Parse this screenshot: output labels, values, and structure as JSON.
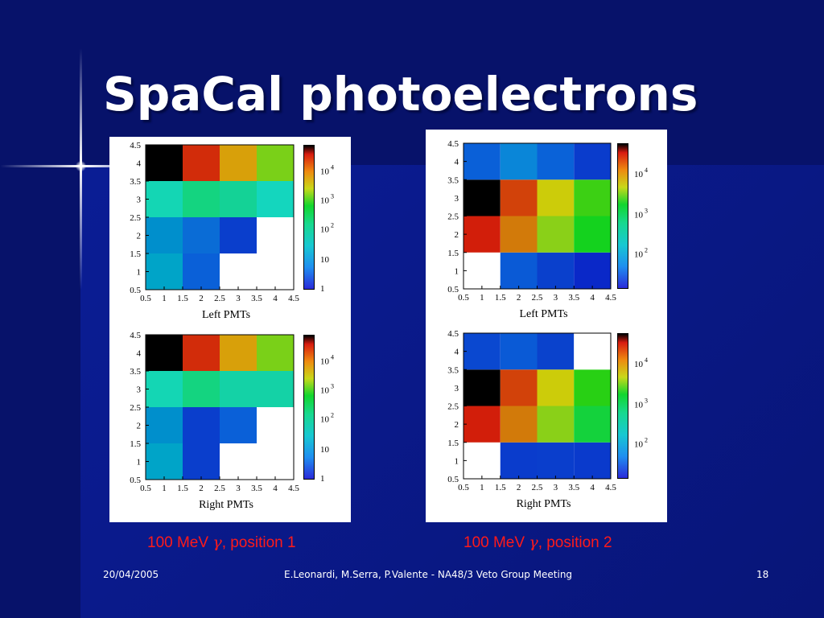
{
  "slide": {
    "title": "SpaCal photoelectrons",
    "captions": [
      {
        "text": "100 MeV ",
        "symbol": "γ",
        "suffix": ", position 1"
      },
      {
        "text": "100 MeV ",
        "symbol": "γ",
        "suffix": ", position 2"
      }
    ]
  },
  "footer": {
    "date": "20/04/2005",
    "center": "E.Leonardi, M.Serra, P.Valente - NA48/3 Veto Group Meeting",
    "page": "18"
  },
  "chart_data": [
    {
      "type": "heatmap",
      "xlabel": "Left PMTs",
      "ylabel": "",
      "x_range": [
        0.5,
        4.5
      ],
      "y_range": [
        0.5,
        4.5
      ],
      "x_ticks": [
        "0.5",
        "1",
        "1.5",
        "2",
        "2.5",
        "3",
        "3.5",
        "4",
        "4.5"
      ],
      "y_ticks": [
        "0.5",
        "1",
        "1.5",
        "2",
        "2.5",
        "3",
        "3.5",
        "4",
        "4.5"
      ],
      "colorbar_labels": [
        "10 4",
        "10 3",
        "10 2",
        "10",
        "1"
      ],
      "colorbar_scale": "log",
      "x_bins": [
        1,
        2,
        3,
        4
      ],
      "y_bins": [
        1,
        2,
        3,
        4
      ],
      "cell_colors": [
        [
          "#00a4c8",
          "#0a60d8",
          "#ffffff",
          "#ffffff"
        ],
        [
          "#008fcc",
          "#0a6cd6",
          "#0a3ecc",
          "#ffffff"
        ],
        [
          "#14d6b4",
          "#14d480",
          "#14d296",
          "#14d6be"
        ],
        [
          "#000000",
          "#d22c0a",
          "#d8a00a",
          "#7ad018"
        ]
      ]
    },
    {
      "type": "heatmap",
      "xlabel": "Right PMTs",
      "ylabel": "",
      "x_range": [
        0.5,
        4.5
      ],
      "y_range": [
        0.5,
        4.5
      ],
      "x_ticks": [
        "0.5",
        "1",
        "1.5",
        "2",
        "2.5",
        "3",
        "3.5",
        "4",
        "4.5"
      ],
      "y_ticks": [
        "0.5",
        "1",
        "1.5",
        "2",
        "2.5",
        "3",
        "3.5",
        "4",
        "4.5"
      ],
      "colorbar_labels": [
        "10 4",
        "10 3",
        "10 2",
        "10",
        "1"
      ],
      "colorbar_scale": "log",
      "x_bins": [
        1,
        2,
        3,
        4
      ],
      "y_bins": [
        1,
        2,
        3,
        4
      ],
      "cell_colors": [
        [
          "#00a4c8",
          "#0a3ecc",
          "#ffffff",
          "#ffffff"
        ],
        [
          "#008fcc",
          "#0a3ecc",
          "#0a60d8",
          "#ffffff"
        ],
        [
          "#14d6b4",
          "#14d480",
          "#14d2a6",
          "#14d2a6"
        ],
        [
          "#000000",
          "#d22c0a",
          "#d8a00a",
          "#7ad018"
        ]
      ]
    },
    {
      "type": "heatmap",
      "xlabel": "Left PMTs",
      "ylabel": "",
      "x_range": [
        0.5,
        4.5
      ],
      "y_range": [
        0.5,
        4.5
      ],
      "x_ticks": [
        "0.5",
        "1",
        "1.5",
        "2",
        "2.5",
        "3",
        "3.5",
        "4",
        "4.5"
      ],
      "y_ticks": [
        "0.5",
        "1",
        "1.5",
        "2",
        "2.5",
        "3",
        "3.5",
        "4",
        "4.5"
      ],
      "colorbar_labels": [
        "10 4",
        "10 3",
        "10 2"
      ],
      "colorbar_scale": "log",
      "x_bins": [
        1,
        2,
        3,
        4
      ],
      "y_bins": [
        1,
        2,
        3,
        4
      ],
      "cell_colors": [
        [
          "#ffffff",
          "#0a5ad6",
          "#0a40cc",
          "#0a28c8"
        ],
        [
          "#d21e0a",
          "#d27a0a",
          "#8ad018",
          "#14d21e"
        ],
        [
          "#000000",
          "#d2420a",
          "#cccc0a",
          "#3cd014"
        ],
        [
          "#0a60d8",
          "#0a86d8",
          "#0a62d8",
          "#0a3ccc"
        ]
      ]
    },
    {
      "type": "heatmap",
      "xlabel": "Right PMTs",
      "ylabel": "",
      "x_range": [
        0.5,
        4.5
      ],
      "y_range": [
        0.5,
        4.5
      ],
      "x_ticks": [
        "0.5",
        "1",
        "1.5",
        "2",
        "2.5",
        "3",
        "3.5",
        "4",
        "4.5"
      ],
      "y_ticks": [
        "0.5",
        "1",
        "1.5",
        "2",
        "2.5",
        "3",
        "3.5",
        "4",
        "4.5"
      ],
      "colorbar_labels": [
        "10 4",
        "10 3",
        "10 2"
      ],
      "colorbar_scale": "log",
      "x_bins": [
        1,
        2,
        3,
        4
      ],
      "y_bins": [
        1,
        2,
        3,
        4
      ],
      "cell_colors": [
        [
          "#ffffff",
          "#0a3ccc",
          "#0a3ecc",
          "#0a3acc"
        ],
        [
          "#d21e0a",
          "#d27a0a",
          "#8ad018",
          "#14d23c"
        ],
        [
          "#000000",
          "#d2420a",
          "#cccc0a",
          "#28d014"
        ],
        [
          "#0a48d0",
          "#0a5ad6",
          "#0a42cc",
          "#ffffff"
        ]
      ]
    }
  ]
}
